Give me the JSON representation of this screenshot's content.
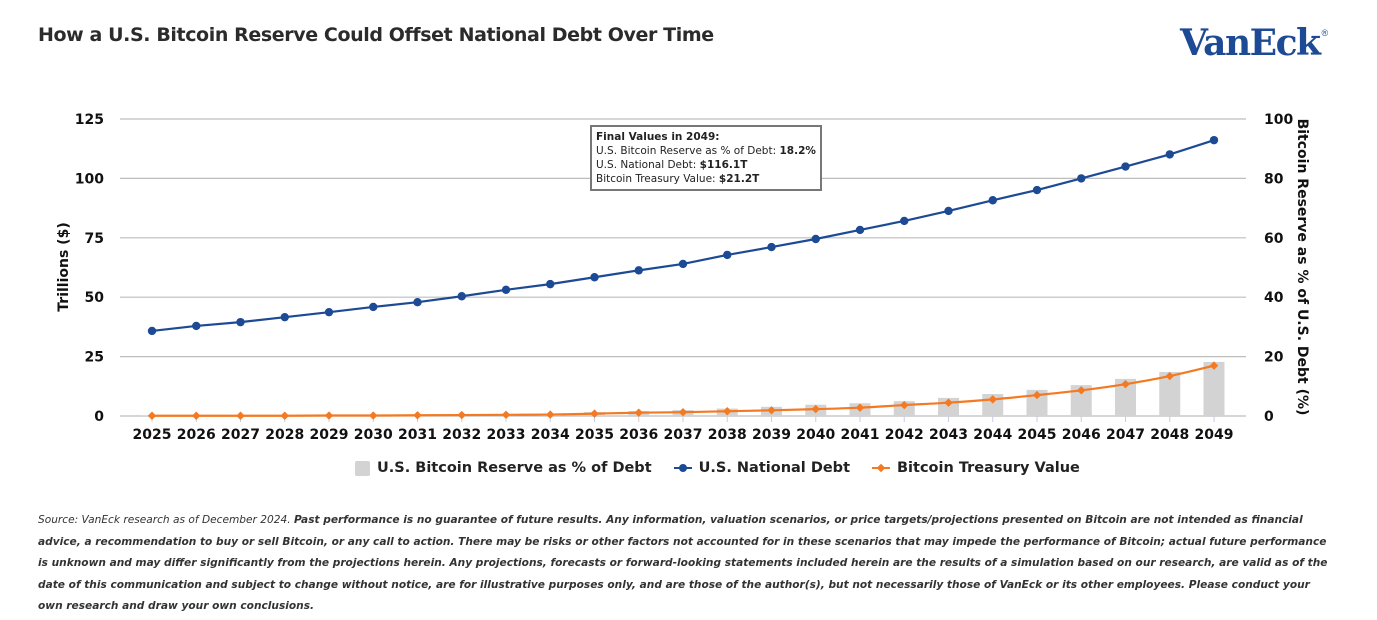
{
  "header": {
    "title": "How a U.S. Bitcoin Reserve Could Offset National Debt Over Time",
    "logo_text": "VanEck",
    "logo_mark": "®"
  },
  "colors": {
    "debt": "#1d4a94",
    "treasury": "#f47920",
    "bars": "#d3d3d3",
    "grid": "#bdbdbd"
  },
  "callout": {
    "heading": "Final Values in 2049:",
    "rows": [
      {
        "label": "U.S. Bitcoin Reserve as % of Debt: ",
        "value": "18.2%"
      },
      {
        "label": "U.S. National Debt: ",
        "value": "$116.1T"
      },
      {
        "label": "Bitcoin Treasury Value: ",
        "value": "$21.2T"
      }
    ]
  },
  "legend": [
    {
      "name": "U.S. Bitcoin Reserve as % of Debt",
      "kind": "bar"
    },
    {
      "name": "U.S. National Debt",
      "kind": "line-dot"
    },
    {
      "name": "Bitcoin Treasury Value",
      "kind": "line-diamond"
    }
  ],
  "footnote": {
    "source": "Source: VanEck research as of December 2024. ",
    "disclaimer": "Past performance is no guarantee of future results. Any information, valuation scenarios, or price targets/projections presented on Bitcoin are not intended as financial advice, a recommendation to buy or sell Bitcoin, or any call to action. There may be risks or other factors not accounted for in these scenarios that may impede the performance of Bitcoin; actual future performance is unknown and may differ significantly from the projections herein. Any projections, forecasts or forward-looking statements included herein are the results of a simulation based on our research, are valid as of the date of this communication and subject to change without notice, are for illustrative purposes only, and are those of the author(s), but not necessarily those of VanEck or its other employees. Please conduct your own research and draw your own conclusions."
  },
  "chart_data": {
    "type": "bar+line",
    "title": "How a U.S. Bitcoin Reserve Could Offset National Debt Over Time",
    "categories": [
      "2025",
      "2026",
      "2027",
      "2028",
      "2029",
      "2030",
      "2031",
      "2032",
      "2033",
      "2034",
      "2035",
      "2036",
      "2037",
      "2038",
      "2039",
      "2040",
      "2041",
      "2042",
      "2043",
      "2044",
      "2045",
      "2046",
      "2047",
      "2048",
      "2049"
    ],
    "ylabel": "Trillions ($)",
    "ylim": [
      0,
      125
    ],
    "yticks": [
      0,
      25,
      50,
      75,
      100,
      125
    ],
    "y2label": "Bitcoin Reserve as % of U.S. Debt (%)",
    "y2lim": [
      0,
      100
    ],
    "y2ticks": [
      0,
      20,
      40,
      60,
      80,
      100
    ],
    "grid": true,
    "legend_position": "bottom",
    "series": [
      {
        "name": "U.S. Bitcoin Reserve as % of Debt",
        "type": "bar",
        "axis": "right",
        "values": [
          0.1,
          0.1,
          0.1,
          0.2,
          0.2,
          0.3,
          0.4,
          0.5,
          0.6,
          0.8,
          1.3,
          1.7,
          2.0,
          2.5,
          3.1,
          3.8,
          4.3,
          5.0,
          6.1,
          7.4,
          8.8,
          10.4,
          12.5,
          14.8,
          18.2
        ]
      },
      {
        "name": "U.S. National Debt",
        "type": "line",
        "axis": "left",
        "marker": "circle",
        "values": [
          35.8,
          37.9,
          39.5,
          41.6,
          43.7,
          45.9,
          47.9,
          50.4,
          53.1,
          55.5,
          58.4,
          61.3,
          64.0,
          67.8,
          71.1,
          74.5,
          78.3,
          82.1,
          86.3,
          90.8,
          95.1,
          100.0,
          105.0,
          110.1,
          116.1
        ]
      },
      {
        "name": "Bitcoin Treasury Value",
        "type": "line",
        "axis": "left",
        "marker": "diamond",
        "values": [
          0.1,
          0.1,
          0.1,
          0.1,
          0.2,
          0.2,
          0.3,
          0.4,
          0.5,
          0.6,
          1.0,
          1.4,
          1.6,
          2.0,
          2.4,
          2.9,
          3.5,
          4.6,
          5.6,
          7.0,
          8.8,
          10.8,
          13.4,
          16.8,
          21.2
        ]
      }
    ]
  }
}
